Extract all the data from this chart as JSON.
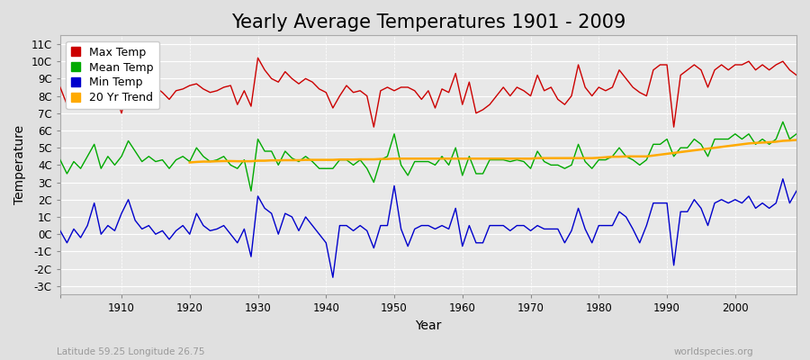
{
  "title": "Yearly Average Temperatures 1901 - 2009",
  "xlabel": "Year",
  "ylabel": "Temperature",
  "subtitle_left": "Latitude 59.25 Longitude 26.75",
  "subtitle_right": "worldspecies.org",
  "years": [
    1901,
    1902,
    1903,
    1904,
    1905,
    1906,
    1907,
    1908,
    1909,
    1910,
    1911,
    1912,
    1913,
    1914,
    1915,
    1916,
    1917,
    1918,
    1919,
    1920,
    1921,
    1922,
    1923,
    1924,
    1925,
    1926,
    1927,
    1928,
    1929,
    1930,
    1931,
    1932,
    1933,
    1934,
    1935,
    1936,
    1937,
    1938,
    1939,
    1940,
    1941,
    1942,
    1943,
    1944,
    1945,
    1946,
    1947,
    1948,
    1949,
    1950,
    1951,
    1952,
    1953,
    1954,
    1955,
    1956,
    1957,
    1958,
    1959,
    1960,
    1961,
    1962,
    1963,
    1964,
    1965,
    1966,
    1967,
    1968,
    1969,
    1970,
    1971,
    1972,
    1973,
    1974,
    1975,
    1976,
    1977,
    1978,
    1979,
    1980,
    1981,
    1982,
    1983,
    1984,
    1985,
    1986,
    1987,
    1988,
    1989,
    1990,
    1991,
    1992,
    1993,
    1994,
    1995,
    1996,
    1997,
    1998,
    1999,
    2000,
    2001,
    2002,
    2003,
    2004,
    2005,
    2006,
    2007,
    2008,
    2009
  ],
  "max_temp": [
    8.5,
    7.5,
    8.2,
    7.8,
    8.4,
    8.6,
    7.9,
    8.5,
    8.2,
    7.0,
    8.5,
    8.8,
    8.2,
    9.0,
    8.5,
    8.2,
    7.8,
    8.3,
    8.4,
    8.6,
    8.7,
    8.4,
    8.2,
    8.3,
    8.5,
    8.6,
    7.5,
    8.3,
    7.4,
    10.2,
    9.5,
    9.0,
    8.8,
    9.4,
    9.0,
    8.7,
    9.0,
    8.8,
    8.4,
    8.2,
    7.3,
    8.0,
    8.6,
    8.2,
    8.3,
    8.0,
    6.2,
    8.3,
    8.5,
    8.3,
    8.5,
    8.5,
    8.3,
    7.8,
    8.3,
    7.3,
    8.4,
    8.2,
    9.3,
    7.5,
    8.8,
    7.0,
    7.2,
    7.5,
    8.0,
    8.5,
    8.0,
    8.5,
    8.3,
    8.0,
    9.2,
    8.3,
    8.5,
    7.8,
    7.5,
    8.0,
    9.8,
    8.5,
    8.0,
    8.5,
    8.3,
    8.5,
    9.5,
    9.0,
    8.5,
    8.2,
    8.0,
    9.5,
    9.8,
    9.8,
    6.2,
    9.2,
    9.5,
    9.8,
    9.5,
    8.5,
    9.5,
    9.8,
    9.5,
    9.8,
    9.8,
    10.0,
    9.5,
    9.8,
    9.5,
    9.8,
    10.0,
    9.5,
    9.2
  ],
  "mean_temp": [
    4.3,
    3.5,
    4.2,
    3.8,
    4.5,
    5.2,
    3.8,
    4.5,
    4.0,
    4.5,
    5.4,
    4.8,
    4.2,
    4.5,
    4.2,
    4.3,
    3.8,
    4.3,
    4.5,
    4.2,
    5.0,
    4.5,
    4.2,
    4.3,
    4.5,
    4.0,
    3.8,
    4.3,
    2.5,
    5.5,
    4.8,
    4.8,
    4.0,
    4.8,
    4.4,
    4.2,
    4.5,
    4.2,
    3.8,
    3.8,
    3.8,
    4.3,
    4.3,
    4.0,
    4.3,
    3.8,
    3.0,
    4.3,
    4.5,
    5.8,
    4.0,
    3.4,
    4.2,
    4.2,
    4.2,
    4.0,
    4.5,
    4.0,
    5.0,
    3.4,
    4.5,
    3.5,
    3.5,
    4.3,
    4.3,
    4.3,
    4.2,
    4.3,
    4.2,
    3.8,
    4.8,
    4.2,
    4.0,
    4.0,
    3.8,
    4.0,
    5.2,
    4.2,
    3.8,
    4.3,
    4.3,
    4.5,
    5.0,
    4.5,
    4.3,
    4.0,
    4.3,
    5.2,
    5.2,
    5.5,
    4.5,
    5.0,
    5.0,
    5.5,
    5.2,
    4.5,
    5.5,
    5.5,
    5.5,
    5.8,
    5.5,
    5.8,
    5.2,
    5.5,
    5.2,
    5.5,
    6.5,
    5.5,
    5.8
  ],
  "min_temp": [
    0.2,
    -0.5,
    0.3,
    -0.2,
    0.5,
    1.8,
    0.0,
    0.5,
    0.2,
    1.2,
    2.0,
    0.8,
    0.3,
    0.5,
    0.0,
    0.2,
    -0.3,
    0.2,
    0.5,
    0.0,
    1.2,
    0.5,
    0.2,
    0.3,
    0.5,
    0.0,
    -0.5,
    0.3,
    -1.3,
    2.2,
    1.5,
    1.2,
    0.0,
    1.2,
    1.0,
    0.2,
    1.0,
    0.5,
    0.0,
    -0.5,
    -2.5,
    0.5,
    0.5,
    0.2,
    0.5,
    0.2,
    -0.8,
    0.5,
    0.5,
    2.8,
    0.3,
    -0.7,
    0.3,
    0.5,
    0.5,
    0.3,
    0.5,
    0.3,
    1.5,
    -0.7,
    0.5,
    -0.5,
    -0.5,
    0.5,
    0.5,
    0.5,
    0.2,
    0.5,
    0.5,
    0.2,
    0.5,
    0.3,
    0.3,
    0.3,
    -0.5,
    0.2,
    1.5,
    0.3,
    -0.5,
    0.5,
    0.5,
    0.5,
    1.3,
    1.0,
    0.3,
    -0.5,
    0.5,
    1.8,
    1.8,
    1.8,
    -1.8,
    1.3,
    1.3,
    2.0,
    1.5,
    0.5,
    1.8,
    2.0,
    1.8,
    2.0,
    1.8,
    2.2,
    1.5,
    1.8,
    1.5,
    1.8,
    3.2,
    1.8,
    2.5
  ],
  "trend_start_year": 1920,
  "trend_years": [
    1920,
    1921,
    1922,
    1923,
    1924,
    1925,
    1926,
    1927,
    1928,
    1929,
    1930,
    1931,
    1932,
    1933,
    1934,
    1935,
    1936,
    1937,
    1938,
    1939,
    1940,
    1941,
    1942,
    1943,
    1944,
    1945,
    1946,
    1947,
    1948,
    1949,
    1950,
    1951,
    1952,
    1953,
    1954,
    1955,
    1956,
    1957,
    1958,
    1959,
    1960,
    1961,
    1962,
    1963,
    1964,
    1965,
    1966,
    1967,
    1968,
    1969,
    1970,
    1971,
    1972,
    1973,
    1974,
    1975,
    1976,
    1977,
    1978,
    1979,
    1980,
    1981,
    1982,
    1983,
    1984,
    1985,
    1986,
    1987,
    1988,
    1989,
    1990,
    1991,
    1992,
    1993,
    1994,
    1995,
    1996,
    1997,
    1998,
    1999,
    2000,
    2001,
    2002,
    2003,
    2004,
    2005,
    2006,
    2007,
    2008,
    2009
  ],
  "trend_vals": [
    4.15,
    4.18,
    4.2,
    4.2,
    4.22,
    4.23,
    4.23,
    4.22,
    4.22,
    4.22,
    4.25,
    4.25,
    4.27,
    4.27,
    4.28,
    4.28,
    4.28,
    4.3,
    4.3,
    4.3,
    4.3,
    4.3,
    4.32,
    4.32,
    4.32,
    4.33,
    4.33,
    4.33,
    4.35,
    4.35,
    4.37,
    4.37,
    4.37,
    4.37,
    4.37,
    4.37,
    4.37,
    4.37,
    4.37,
    4.37,
    4.37,
    4.37,
    4.37,
    4.37,
    4.37,
    4.37,
    4.37,
    4.37,
    4.37,
    4.37,
    4.37,
    4.4,
    4.4,
    4.4,
    4.4,
    4.4,
    4.4,
    4.4,
    4.4,
    4.4,
    4.42,
    4.45,
    4.48,
    4.48,
    4.5,
    4.5,
    4.5,
    4.5,
    4.55,
    4.6,
    4.65,
    4.7,
    4.75,
    4.8,
    4.85,
    4.9,
    4.95,
    5.0,
    5.05,
    5.1,
    5.15,
    5.2,
    5.25,
    5.28,
    5.3,
    5.32,
    5.35,
    5.4,
    5.42,
    5.45
  ],
  "max_color": "#cc0000",
  "mean_color": "#00aa00",
  "min_color": "#0000cc",
  "trend_color": "#ffaa00",
  "bg_color": "#e0e0e0",
  "plot_bg_color": "#e8e8e8",
  "grid_color": "#ffffff",
  "ylim": [
    -3.5,
    11.5
  ],
  "yticks": [
    -3,
    -2,
    -1,
    0,
    1,
    2,
    3,
    4,
    5,
    6,
    7,
    8,
    9,
    10,
    11
  ],
  "ytick_labels": [
    "-3C",
    "-2C",
    "-1C",
    "0C",
    "1C",
    "2C",
    "3C",
    "4C",
    "5C",
    "6C",
    "7C",
    "8C",
    "9C",
    "10C",
    "11C"
  ],
  "xticks": [
    1901,
    1910,
    1920,
    1930,
    1940,
    1950,
    1960,
    1970,
    1980,
    1990,
    2000
  ],
  "xtick_labels": [
    "",
    "1910",
    "1920",
    "1930",
    "1940",
    "1950",
    "1960",
    "1970",
    "1980",
    "1990",
    "2000"
  ],
  "title_fontsize": 15,
  "axis_label_fontsize": 10,
  "tick_fontsize": 8.5,
  "legend_fontsize": 9,
  "linewidth": 1.0
}
